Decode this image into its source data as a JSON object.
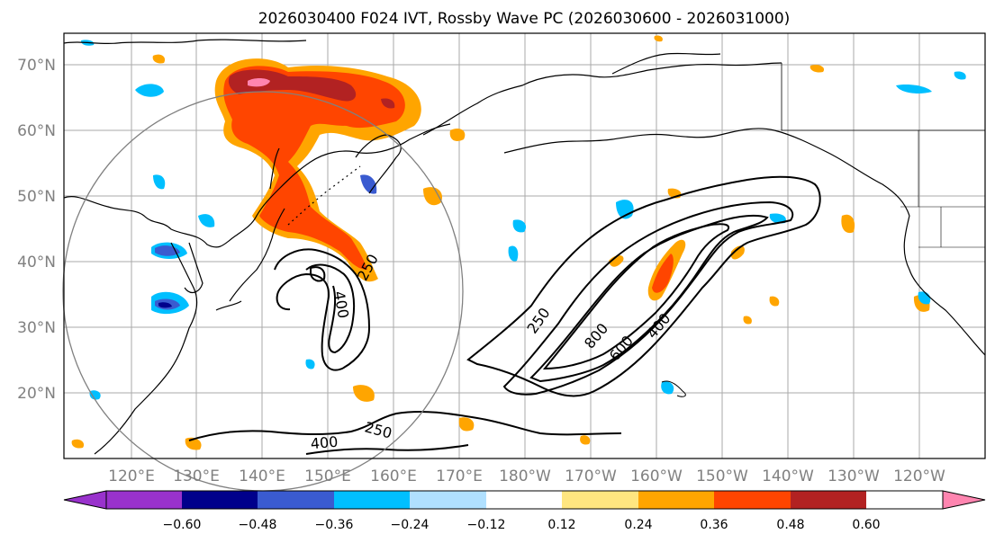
{
  "title": "2026030400 F024 IVT, Rossby Wave PC (2026030600 - 2026031000)",
  "lat_labels": [
    "70°N",
    "60°N",
    "50°N",
    "40°N",
    "30°N",
    "20°N"
  ],
  "lon_labels": [
    "120°E",
    "130°E",
    "140°E",
    "150°E",
    "160°E",
    "170°E",
    "180°W",
    "170°W",
    "160°W",
    "150°W",
    "140°W",
    "130°W",
    "120°W"
  ],
  "contour_labels": [
    "250",
    "400",
    "250",
    "800",
    "600",
    "400",
    "250",
    "400"
  ],
  "colorbar": {
    "colors": [
      "#9932cc",
      "#00008b",
      "#3a5bd0",
      "#00bfff",
      "#b0e0ff",
      "#ffffff",
      "#ffe680",
      "#ffa500",
      "#ff4500",
      "#b22222",
      "#ff85b0"
    ],
    "tick_labels": [
      "−0.60",
      "−0.48",
      "−0.36",
      "−0.24",
      "−0.12",
      "0.12",
      "0.24",
      "0.36",
      "0.48",
      "0.60"
    ]
  }
}
